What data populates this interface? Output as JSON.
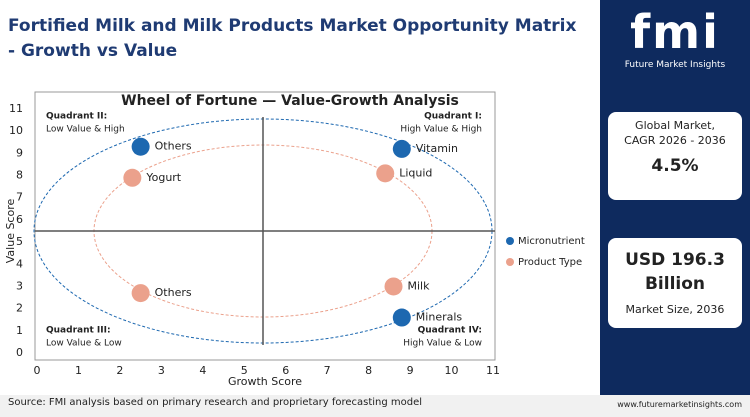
{
  "header": {
    "title": "Fortified Milk and Milk Products Market Opportunity Matrix - Growth vs Value"
  },
  "chart_data": {
    "type": "scatter",
    "title": "Wheel of Fortune — Value-Growth Analysis",
    "x_label": "Growth Score",
    "y_label": "Value Score",
    "xlim": [
      0,
      11
    ],
    "ylim": [
      0,
      11
    ],
    "xticks": [
      0,
      1,
      2,
      3,
      4,
      5,
      6,
      7,
      8,
      9,
      10,
      11
    ],
    "yticks": [
      0,
      1,
      2,
      3,
      4,
      5,
      6,
      7,
      8,
      9,
      10,
      11
    ],
    "legend": "right",
    "series": [
      {
        "name": "Micronutrient",
        "color": "#1d68b0",
        "labels": [
          "Others",
          "Vitamin",
          "Minerals"
        ],
        "x": [
          2.5,
          8.8,
          8.8
        ],
        "values": [
          9.3,
          9.2,
          1.6
        ]
      },
      {
        "name": "Product Type",
        "color": "#eba18c",
        "labels": [
          "Yogurt",
          "Liquid",
          "Others",
          "Milk"
        ],
        "x": [
          2.3,
          8.4,
          2.5,
          8.6
        ],
        "values": [
          7.9,
          8.1,
          2.7,
          3.0
        ]
      }
    ],
    "quadrants": [
      {
        "title": "Quadrant II:",
        "desc": "Low Value & High"
      },
      {
        "title": "Quadrant I:",
        "desc": "High Value & High"
      },
      {
        "title": "Quadrant III:",
        "desc": "Low Value & Low"
      },
      {
        "title": "Quadrant IV:",
        "desc": "High Value & Low"
      }
    ]
  },
  "sidebar": {
    "logo": "fmi",
    "brand": "Future Market Insights",
    "cagr_label": "Global Market, CAGR 2026 - 2036",
    "cagr": "4.5%",
    "size": "USD 196.3 Billion",
    "size_label": "Market Size, 2036"
  },
  "footer": {
    "source": "Source: FMI analysis based on primary research and proprietary forecasting model",
    "url": "www.futuremarketinsights.com"
  }
}
